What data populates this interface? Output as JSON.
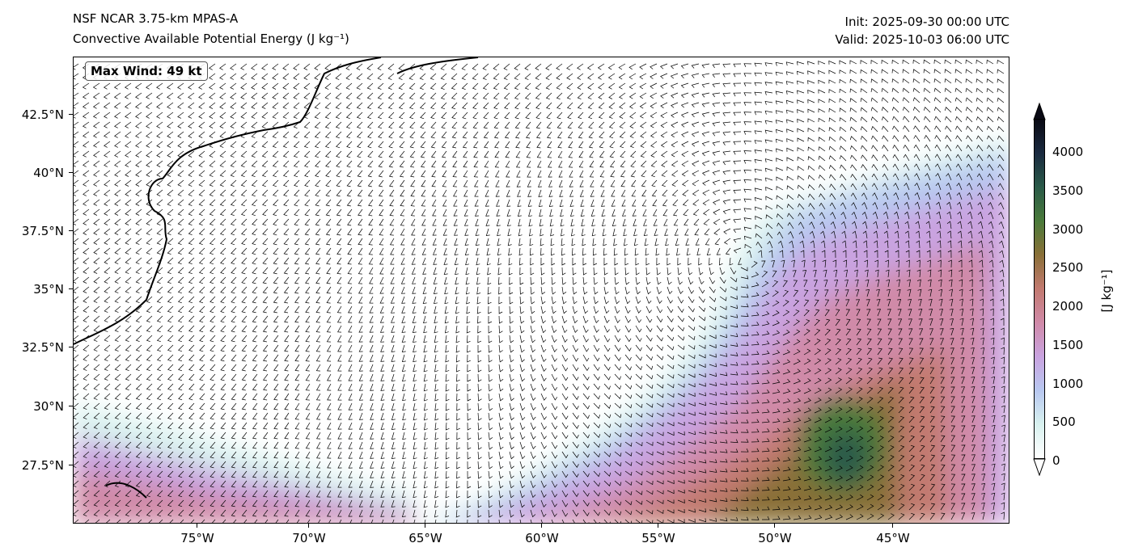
{
  "header": {
    "model": "NSF NCAR 3.75-km MPAS-A",
    "field": "Convective Available Potential Energy (J kg⁻¹)",
    "init": "Init: 2025-09-30 00:00 UTC",
    "valid": "Valid: 2025-10-03 06:00 UTC"
  },
  "annotation": {
    "max_wind": "Max Wind: 49 kt"
  },
  "axes": {
    "lat_labels": [
      "42.5°N",
      "40°N",
      "37.5°N",
      "35°N",
      "32.5°N",
      "30°N",
      "27.5°N"
    ],
    "lon_labels": [
      "75°W",
      "70°W",
      "65°W",
      "60°W",
      "55°W",
      "50°W",
      "45°W"
    ]
  },
  "colorbar": {
    "title": "[J kg⁻¹]",
    "ticks": [
      "4000",
      "3500",
      "3000",
      "2500",
      "2000",
      "1500",
      "1000",
      "500",
      "0"
    ],
    "colors": [
      "#ffffff",
      "#d8f1ef",
      "#b8c8f0",
      "#c9a3e0",
      "#d08aa8",
      "#c27a70",
      "#8a7038",
      "#4a7a3a",
      "#2a5a48",
      "#1a2a40",
      "#0a0a14"
    ]
  }
}
